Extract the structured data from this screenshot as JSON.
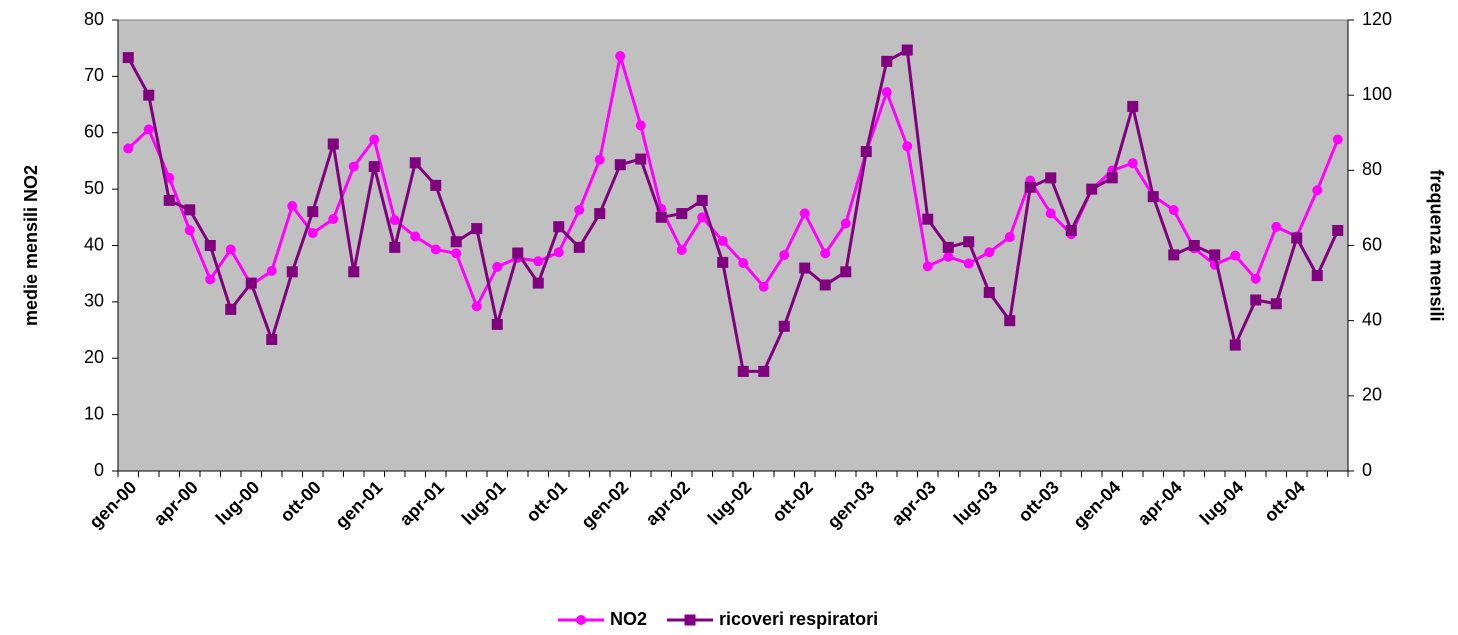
{
  "chart_data": {
    "type": "line",
    "categories": [
      "gen-00",
      null,
      null,
      "apr-00",
      null,
      null,
      "lug-00",
      null,
      null,
      "ott-00",
      null,
      null,
      "gen-01",
      null,
      null,
      "apr-01",
      null,
      null,
      "lug-01",
      null,
      null,
      "ott-01",
      null,
      null,
      "gen-02",
      null,
      null,
      "apr-02",
      null,
      null,
      "lug-02",
      null,
      null,
      "ott-02",
      null,
      null,
      "gen-03",
      null,
      null,
      "apr-03",
      null,
      null,
      "lug-03",
      null,
      null,
      "ott-03",
      null,
      null,
      "gen-04",
      null,
      null,
      "apr-04",
      null,
      null,
      "lug-04",
      null,
      null,
      "ott-04",
      null,
      null
    ],
    "y_label": "medie mensili NO2",
    "y2_label": "frequenza mensili",
    "ylim": [
      0,
      80
    ],
    "yticks": [
      0,
      10,
      20,
      30,
      40,
      50,
      60,
      70,
      80
    ],
    "y2lim": [
      0,
      120
    ],
    "y2ticks": [
      0,
      20,
      40,
      60,
      80,
      100,
      120
    ],
    "background": "#c0c0c0",
    "legend": "bottom",
    "series": [
      {
        "name": "NO2",
        "color": "#ff00ff",
        "marker": "circle",
        "values": [
          57.2,
          60.6,
          52,
          42.7,
          34,
          39.3,
          33,
          35.5,
          47,
          42.2,
          44.7,
          54,
          58.8,
          44.5,
          41.6,
          39.3,
          38.6,
          29.2,
          36.2,
          37.8,
          37.2,
          38.8,
          46.3,
          55.2,
          73.6,
          61.3,
          46.5,
          39.2,
          45,
          40.8,
          36.9,
          32.7,
          38.3,
          45.7,
          38.6,
          43.9,
          56.6,
          67.2,
          57.6,
          36.3,
          38,
          36.8,
          38.8,
          41.5,
          51.5,
          45.7,
          42,
          50,
          53.3,
          54.6,
          48.8,
          46.3,
          39.5,
          36.6,
          38.2,
          34.1,
          43.3,
          41.6,
          49.8,
          58.8
        ]
      },
      {
        "name": "ricoveri respiratori",
        "color": "#800080",
        "marker": "square",
        "axis": "y2",
        "values": [
          110,
          100,
          72,
          69.5,
          60,
          43,
          50,
          35,
          53,
          69,
          87,
          53,
          81,
          59.5,
          82,
          76,
          61,
          64.5,
          39,
          58,
          50,
          65,
          59.5,
          68.5,
          81.5,
          83,
          67.5,
          68.5,
          72,
          55.5,
          26.5,
          26.5,
          38.5,
          54,
          49.5,
          53,
          85,
          109,
          112,
          67,
          59.5,
          61,
          47.5,
          40,
          75.5,
          78,
          64,
          75,
          78,
          97,
          73,
          57.5,
          60,
          57.5,
          33.5,
          45.5,
          44.5,
          62,
          52,
          64
        ]
      }
    ]
  }
}
